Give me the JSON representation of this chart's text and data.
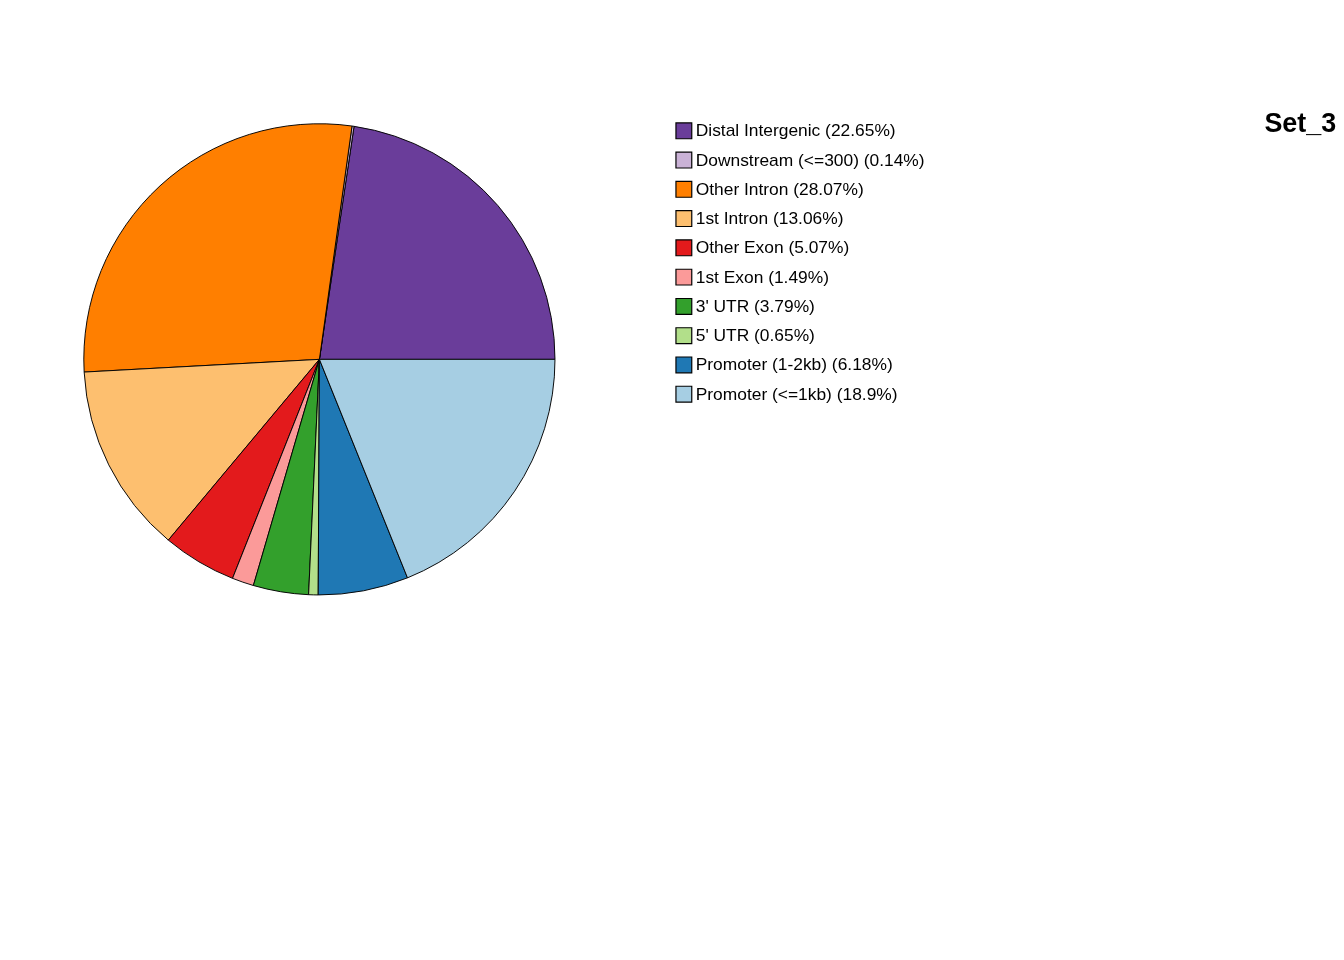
{
  "chart_data": {
    "type": "pie",
    "title": "Set_3",
    "categories": [
      "Distal Intergenic (22.65%)",
      "Downstream (<=300) (0.14%)",
      "Other Intron (28.07%)",
      "1st Intron (13.06%)",
      "Other Exon (5.07%)",
      "1st Exon (1.49%)",
      "3' UTR (3.79%)",
      "5' UTR (0.65%)",
      "Promoter (1-2kb) (6.18%)",
      "Promoter (<=1kb) (18.9%)"
    ],
    "values": [
      22.65,
      0.14,
      28.07,
      13.06,
      5.07,
      1.49,
      3.79,
      0.65,
      6.18,
      18.9
    ],
    "colors": [
      "#6a3d9a",
      "#cab2d6",
      "#ff7f00",
      "#fdbf6f",
      "#e31a1c",
      "#fb9a99",
      "#33a02c",
      "#b2df8a",
      "#1f78b4",
      "#a6cee3"
    ],
    "legend": "right"
  }
}
